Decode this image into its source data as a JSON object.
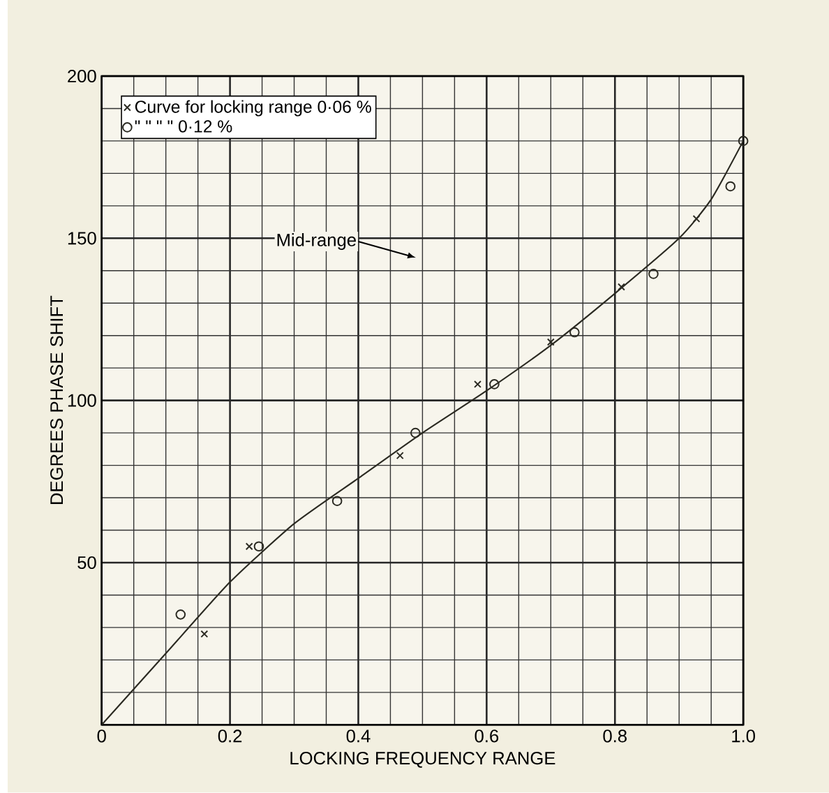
{
  "chart_data": {
    "type": "scatter",
    "xlabel": "LOCKING FREQUENCY RANGE",
    "ylabel": "DEGREES PHASE SHIFT",
    "xlim": [
      0,
      1
    ],
    "ylim": [
      0,
      200
    ],
    "xticks": [
      0,
      {
        "value": 0.2,
        "label": "0.2"
      },
      {
        "value": 0.4,
        "label": "0.4"
      },
      {
        "value": 0.6,
        "label": "0.6"
      },
      {
        "value": 0.8,
        "label": "0.8"
      },
      {
        "value": 1,
        "label": "1.0"
      }
    ],
    "yticks": [
      {
        "value": 0,
        "label": null
      },
      50,
      100,
      150,
      200
    ],
    "grid": true,
    "legend": "top left",
    "annotations": [
      "Mid-range"
    ],
    "series": [
      {
        "type": "line",
        "color": "#2b2a22",
        "marker": "none",
        "line_style": "solid",
        "x": [
          0,
          0.1,
          0.2,
          0.3,
          0.4,
          0.5,
          0.6,
          0.7,
          0.8,
          0.9,
          0.95,
          1.0
        ],
        "values": [
          0,
          22,
          44,
          62,
          76,
          90,
          103,
          117,
          133,
          150,
          162,
          180
        ]
      },
      {
        "name": "Curve for locking range 0·06 %",
        "color": "#2b2a22",
        "marker": "cross",
        "x": [
          0.16,
          0.23,
          0.465,
          0.586,
          0.7,
          0.81,
          0.927
        ],
        "values": [
          28,
          55,
          83,
          105,
          118,
          135,
          156
        ]
      },
      {
        "name": "\" \" \" \" 0·12 %",
        "color": "#2b2a22",
        "marker": "circle",
        "x": [
          0.123,
          0.245,
          0.367,
          0.489,
          0.612,
          0.737,
          0.86,
          0.98,
          1.0
        ],
        "values": [
          34,
          55,
          69,
          90,
          105,
          121,
          139,
          166,
          180
        ]
      }
    ]
  }
}
